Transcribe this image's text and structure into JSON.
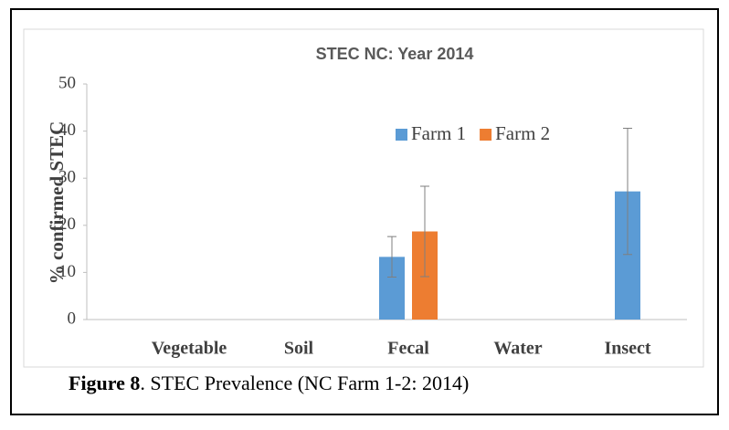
{
  "chart_data": {
    "type": "bar",
    "title": "STEC NC: Year 2014",
    "y_label": "% confirmed STEC",
    "categories": [
      "Vegetable",
      "Soil",
      "Fecal",
      "Water",
      "Insect"
    ],
    "series": [
      {
        "name": "Farm 1",
        "color": "#5b9bd5",
        "values": [
          null,
          null,
          13.3,
          null,
          27.2
        ],
        "errors": [
          null,
          null,
          4.3,
          null,
          13.4
        ]
      },
      {
        "name": "Farm 2",
        "color": "#ed7d31",
        "values": [
          null,
          null,
          18.7,
          null,
          null
        ],
        "errors": [
          null,
          null,
          9.6,
          null,
          null
        ]
      }
    ],
    "ylim": [
      0,
      50
    ],
    "yticks": [
      0,
      10,
      20,
      30,
      40,
      50
    ],
    "legend": "top-right"
  },
  "caption": {
    "label": "Figure 8",
    "text": ". STEC Prevalence (NC Farm 1-2: 2014)"
  }
}
